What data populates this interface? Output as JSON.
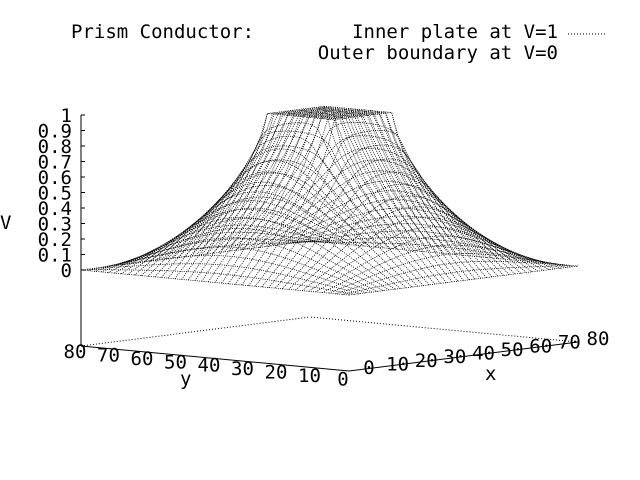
{
  "chart_data": {
    "type": "surface",
    "title": "Prism Conductor:",
    "legend": {
      "entry": "Inner plate at V=1\nOuter boundary at V=0",
      "line_1": "Inner plate at V=1",
      "line_2": "Outer boundary at V=0",
      "placement": "top-right",
      "line_style": "dotted",
      "color": "#000000"
    },
    "xlabel": "x",
    "ylabel": "y",
    "zlabel": "V",
    "x_ticks": [
      "0",
      "10",
      "20",
      "30",
      "40",
      "50",
      "60",
      "70",
      "80"
    ],
    "y_ticks": [
      "80",
      "70",
      "60",
      "50",
      "40",
      "30",
      "20",
      "10",
      "0"
    ],
    "z_ticks": [
      "0",
      "0.1",
      "0.2",
      "0.3",
      "0.4",
      "0.5",
      "0.6",
      "0.7",
      "0.8",
      "0.9",
      "1"
    ],
    "xlim": [
      0,
      80
    ],
    "ylim": [
      0,
      80
    ],
    "zlim": [
      0,
      1
    ],
    "grid_points": 41,
    "inner_plate": {
      "x_range": [
        30,
        50
      ],
      "y_range": [
        30,
        50
      ],
      "value": 1
    },
    "outer_boundary_value": 0,
    "mesh_color": "#000000",
    "grid": false
  }
}
